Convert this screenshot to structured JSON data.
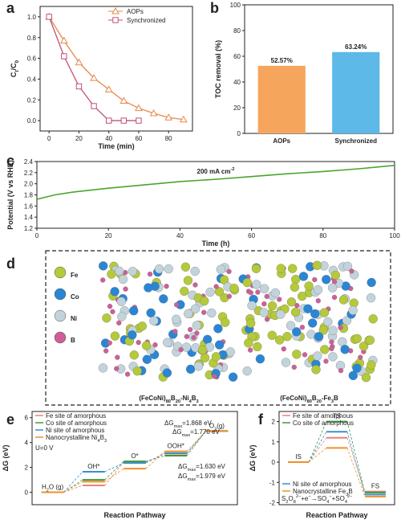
{
  "chart_data": [
    {
      "panel": "a",
      "type": "line_markers",
      "xlabel": "Time (min)",
      "ylabel": [
        "C",
        {
          "sub": "t"
        },
        "/C",
        {
          "sub": "0"
        }
      ],
      "xlim": [
        -6,
        96
      ],
      "xticks": [
        0,
        20,
        40,
        60,
        80
      ],
      "ylim": [
        -0.1,
        1.1
      ],
      "yticks": [
        {
          "value": 0,
          "label": "0.0"
        },
        0.2,
        0.4,
        0.6,
        0.8,
        {
          "value": 1,
          "label": "1.0"
        }
      ],
      "series": [
        {
          "name": "AOPs",
          "color": "#e8874a",
          "marker": "triangle",
          "x": [
            0,
            10,
            20,
            30,
            40,
            50,
            60,
            70,
            80,
            90
          ],
          "values": [
            1.0,
            0.77,
            0.56,
            0.41,
            0.3,
            0.19,
            0.12,
            0.07,
            0.03,
            0.01
          ]
        },
        {
          "name": "Synchronized",
          "color": "#c0507a",
          "marker": "square",
          "x": [
            0,
            10,
            20,
            30,
            40,
            50,
            60
          ],
          "values": [
            1.0,
            0.62,
            0.33,
            0.14,
            0.0,
            0.0,
            0.0
          ]
        }
      ]
    },
    {
      "panel": "b",
      "type": "bar",
      "ylabel": "TOC removal (%)",
      "categories": [
        "AOPs",
        "Synchronized"
      ],
      "values": [
        52.57,
        63.24
      ],
      "value_labels": [
        "52.57%",
        "63.24%"
      ],
      "colors": [
        "#f6a55c",
        "#5cb9e8"
      ],
      "ylim": [
        0,
        100
      ],
      "yticks": [
        0,
        20,
        40,
        60,
        80,
        100
      ]
    },
    {
      "panel": "c",
      "type": "line",
      "xlabel": "Time (h)",
      "ylabel": "Potential (V vs RHE)",
      "annotation": [
        "200 mA cm",
        {
          "sup": "-2"
        }
      ],
      "color": "#4aa52e",
      "x": [
        0,
        5,
        10,
        20,
        30,
        40,
        50,
        60,
        70,
        80,
        90,
        100
      ],
      "values": [
        1.72,
        1.8,
        1.85,
        1.92,
        1.98,
        2.04,
        2.08,
        2.13,
        2.18,
        2.22,
        2.27,
        2.33
      ],
      "xlim": [
        0,
        100
      ],
      "xticks": [
        0,
        20,
        40,
        60,
        80,
        100
      ],
      "ylim": [
        1.2,
        2.4
      ],
      "yticks": [
        1.2,
        1.4,
        1.6,
        1.8,
        {
          "value": 2,
          "label": "2.0"
        },
        2.2,
        2.4
      ]
    },
    {
      "panel": "e",
      "type": "energy_levels",
      "xlabel": "Reaction Pathway",
      "ylabel": "ΔG (eV)",
      "note": "U=0 V",
      "categories": [
        [
          "H",
          {
            "sub": "2"
          },
          "O (g)"
        ],
        "OH*",
        "O*",
        "OOH*",
        [
          "O",
          {
            "sub": "2"
          },
          "(g)"
        ]
      ],
      "ylim": [
        -1,
        6.5
      ],
      "yticks": [
        0,
        2,
        4,
        6
      ],
      "series": [
        {
          "name": "Fe site of amorphous",
          "color": "#e8837a",
          "values": [
            0,
            0.55,
            2.42,
            3.1,
            4.92
          ]
        },
        {
          "name": "Co site of amorphous",
          "color": "#3c9a3a",
          "values": [
            0,
            1.0,
            2.48,
            2.94,
            4.92
          ]
        },
        {
          "name": "Ni site of amorphous",
          "color": "#3b8fd0",
          "values": [
            0,
            1.65,
            2.35,
            3.15,
            4.92
          ]
        },
        {
          "name": [
            "Nanocrystalline Ni",
            {
              "sub": "4"
            },
            "B",
            {
              "sub": "3"
            }
          ],
          "color": "#f0902a",
          "values": [
            0,
            0.85,
            1.9,
            3.29,
            4.92
          ]
        }
      ],
      "annotations": [
        {
          "text": [
            "ΔG",
            {
              "sub": "max"
            },
            "=1.868 eV"
          ],
          "color": "#e8837a"
        },
        {
          "text": [
            "ΔG",
            {
              "sub": "max"
            },
            "=1.770 eV"
          ],
          "color": "#3b8fd0"
        },
        {
          "text": [
            "ΔG",
            {
              "sub": "max"
            },
            "=1.630 eV"
          ],
          "color": "#f0902a"
        },
        {
          "text": [
            "ΔG",
            {
              "sub": "max"
            },
            "=1.979 eV"
          ],
          "color": "#3c9a3a"
        }
      ]
    },
    {
      "panel": "f",
      "type": "energy_levels",
      "xlabel": "Reaction Pathway",
      "ylabel": "ΔG (eV)",
      "note": [
        "S",
        {
          "sub": "2"
        },
        "O",
        {
          "sub": "8"
        },
        {
          "sup": "2−"
        },
        "+e",
        {
          "sup": "−"
        },
        "→SO",
        {
          "sub": "4"
        },
        {
          "sup": "−"
        },
        "+SO",
        {
          "sub": "4"
        },
        {
          "sup": "2−"
        }
      ],
      "categories": [
        "IS",
        "TS",
        "FS"
      ],
      "ylim": [
        -2.1,
        2.5
      ],
      "yticks": [
        -2,
        -1,
        0,
        1,
        2
      ],
      "series": [
        {
          "name": "Fe site of amorphous",
          "color": "#e8837a",
          "values": [
            0,
            1.2,
            -1.45
          ]
        },
        {
          "name": "Co site of amorphous",
          "color": "#3c9a3a",
          "values": [
            0,
            2.0,
            -1.5
          ]
        },
        {
          "name": "Ni site of amorphous",
          "color": "#3b8fd0",
          "values": [
            0,
            1.5,
            -1.6
          ]
        },
        {
          "name": [
            "Nanocrystalline Fe",
            {
              "sub": "3"
            },
            "B"
          ],
          "color": "#f0902a",
          "values": [
            0,
            0.7,
            -1.7
          ]
        }
      ]
    }
  ],
  "panel_d": {
    "panel": "d",
    "legend": [
      {
        "name": "Fe",
        "color": "#b5c93a"
      },
      {
        "name": "Co",
        "color": "#2a86d4"
      },
      {
        "name": "Ni",
        "color": "#c3d3dc"
      },
      {
        "name": "B",
        "color": "#cf5f98"
      }
    ],
    "structures": [
      [
        "(FeCoNi)",
        {
          "sub": "80"
        },
        "B",
        {
          "sub": "20"
        },
        "-Ni",
        {
          "sub": "4"
        },
        "B",
        {
          "sub": "3"
        }
      ],
      [
        "(FeCoNi)",
        {
          "sub": "80"
        },
        "B",
        {
          "sub": "20"
        },
        "-Fe",
        {
          "sub": "3"
        },
        "B"
      ]
    ]
  }
}
